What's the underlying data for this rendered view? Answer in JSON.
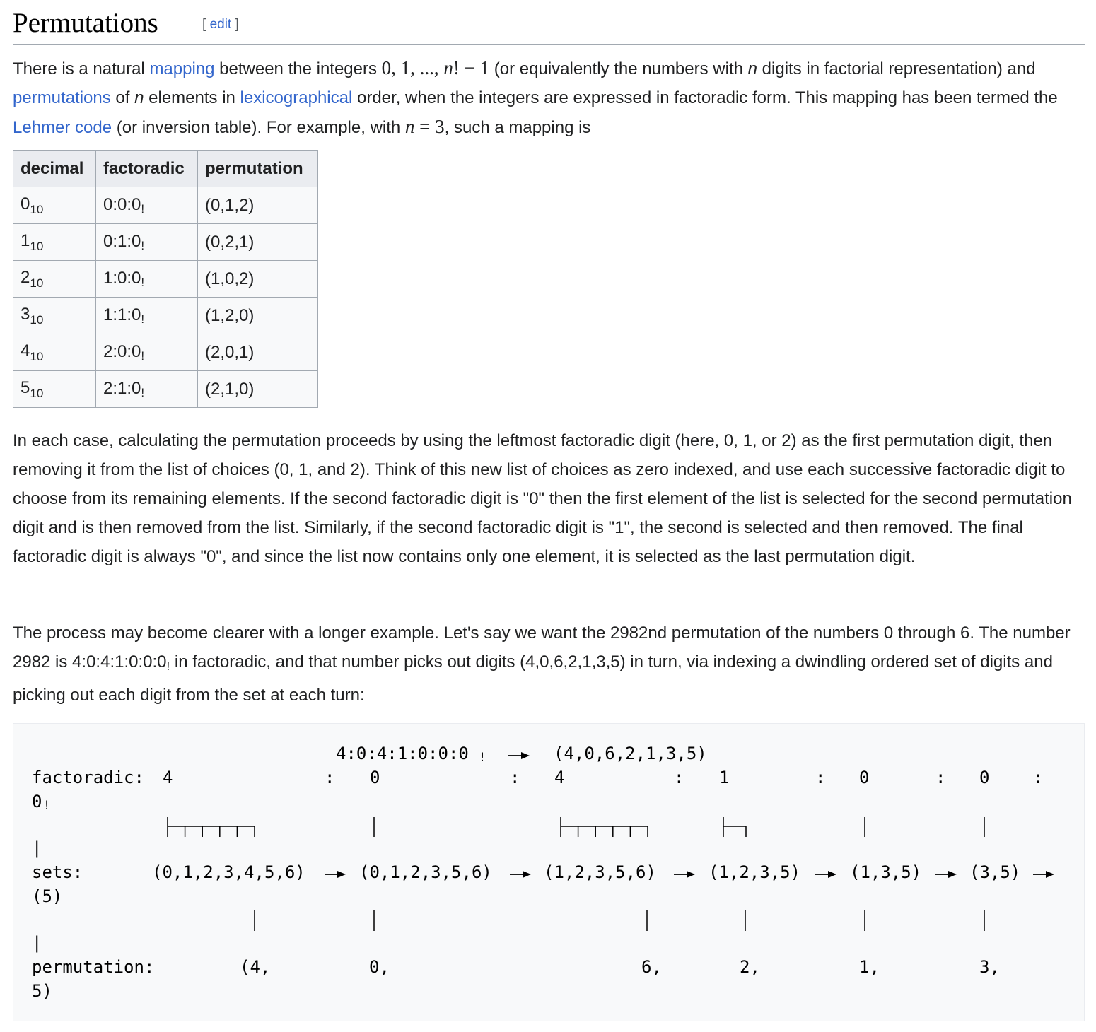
{
  "heading": {
    "title": "Permutations",
    "edit_open": "[ ",
    "edit_label": "edit",
    "edit_close": " ]"
  },
  "para1": {
    "t1": "There is a natural ",
    "link_mapping": "mapping",
    "t2": " between the integers ",
    "math_seq": "0, 1, ..., ",
    "math_n": "n",
    "math_fact": "! − 1",
    "t3": " (or equivalently the numbers with ",
    "var_n1": "n",
    "t4": " digits in factorial representation) and ",
    "link_permutations": "permutations",
    "t5": " of ",
    "var_n2": "n",
    "t6": " elements in ",
    "link_lexicographical": "lexicographical",
    "t7": " order, when the integers are expressed in factoradic form. This mapping has been termed the ",
    "link_lehmer": "Lehmer code",
    "t8": " (or inversion table). For example, with ",
    "math_n2": "n",
    "math_eq": " = 3",
    "t9": ", such a mapping is"
  },
  "table": {
    "headers": [
      "decimal",
      "factoradic",
      "permutation"
    ],
    "rows": [
      {
        "decimal": "0",
        "base": "10",
        "factoradic": "0:0:0",
        "bang": "!",
        "permutation": "(0,1,2)"
      },
      {
        "decimal": "1",
        "base": "10",
        "factoradic": "0:1:0",
        "bang": "!",
        "permutation": "(0,2,1)"
      },
      {
        "decimal": "2",
        "base": "10",
        "factoradic": "1:0:0",
        "bang": "!",
        "permutation": "(1,0,2)"
      },
      {
        "decimal": "3",
        "base": "10",
        "factoradic": "1:1:0",
        "bang": "!",
        "permutation": "(1,2,0)"
      },
      {
        "decimal": "4",
        "base": "10",
        "factoradic": "2:0:0",
        "bang": "!",
        "permutation": "(2,0,1)"
      },
      {
        "decimal": "5",
        "base": "10",
        "factoradic": "2:1:0",
        "bang": "!",
        "permutation": "(2,1,0)"
      }
    ]
  },
  "para2": "In each case, calculating the permutation proceeds by using the leftmost factoradic digit (here, 0, 1, or 2) as the first permutation digit, then removing it from the list of choices (0, 1, and 2). Think of this new list of choices as zero indexed, and use each successive factoradic digit to choose from its remaining elements. If the second factoradic digit is \"0\" then the first element of the list is selected for the second permutation digit and is then removed from the list. Similarly, if the second factoradic digit is \"1\", the second is selected and then removed. The final factoradic digit is always \"0\", and since the list now contains only one element, it is selected as the last permutation digit.",
  "para3": {
    "t1": "The process may become clearer with a longer example. Let's say we want the 2982nd permutation of the numbers 0 through 6. The number 2982 is 4:0:4:1:0:0:0",
    "bang": "!",
    "t2": " in factoradic, and that number picks out digits (4,0,6,2,1,3,5) in turn, via indexing a dwindling ordered set of digits and picking out each digit from the set at each turn:"
  },
  "diagram": {
    "top_left": "4:0:4:1:0:0:0",
    "top_bang": "!",
    "top_right": "(4,0,6,2,1,3,5)",
    "factoradic_label": "factoradic:",
    "factoradic_digits": [
      "4",
      "0",
      "4",
      "1",
      "0",
      "0",
      "0"
    ],
    "separator": ":",
    "factoradic_bang": "!",
    "pipe": "|",
    "sets_label": "sets:",
    "sets": [
      "(0,1,2,3,4,5,6)",
      "(0,1,2,3,5,6)",
      "(1,2,3,5,6)",
      "(1,2,3,5)",
      "(1,3,5)",
      "(3,5)",
      "(5)"
    ],
    "permutation_label": "permutation:",
    "permutation": [
      "(4,",
      "0,",
      "6,",
      "2,",
      "1,",
      "3,",
      "5)"
    ]
  }
}
